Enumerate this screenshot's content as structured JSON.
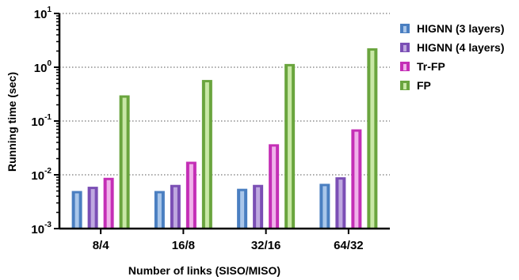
{
  "chart_data": {
    "type": "bar",
    "scale": "log",
    "categories": [
      "8/4",
      "16/8",
      "32/16",
      "64/32"
    ],
    "series": [
      {
        "name": "HIGNN (3 layers)",
        "values": [
          0.005,
          0.005,
          0.0055,
          0.0068
        ],
        "color": "#4a7fc1",
        "fill": "#a9c6ea"
      },
      {
        "name": "HIGNN (4 layers)",
        "values": [
          0.006,
          0.0065,
          0.0065,
          0.009
        ],
        "color": "#7b4fb5",
        "fill": "#bfa8e0"
      },
      {
        "name": "Tr-FP",
        "values": [
          0.0088,
          0.0175,
          0.037,
          0.07
        ],
        "color": "#c42fb6",
        "fill": "#f0b2ea"
      },
      {
        "name": "FP",
        "values": [
          0.3,
          0.58,
          1.15,
          2.25
        ],
        "color": "#6aa53e",
        "fill": "#c9e8a6"
      }
    ],
    "xlabel": "Number of links (SISO/MISO)",
    "ylabel": "Running time (sec)",
    "yticks": [
      {
        "base": "10",
        "exp": "1",
        "value": 10
      },
      {
        "base": "10",
        "exp": "0",
        "value": 1
      },
      {
        "base": "10",
        "exp": "-1",
        "value": 0.1
      },
      {
        "base": "10",
        "exp": "-2",
        "value": 0.01
      },
      {
        "base": "10",
        "exp": "-3",
        "value": 0.001
      }
    ],
    "ylim": [
      0.001,
      10
    ],
    "grid": "horizontal dotted",
    "legend_position": "right"
  }
}
